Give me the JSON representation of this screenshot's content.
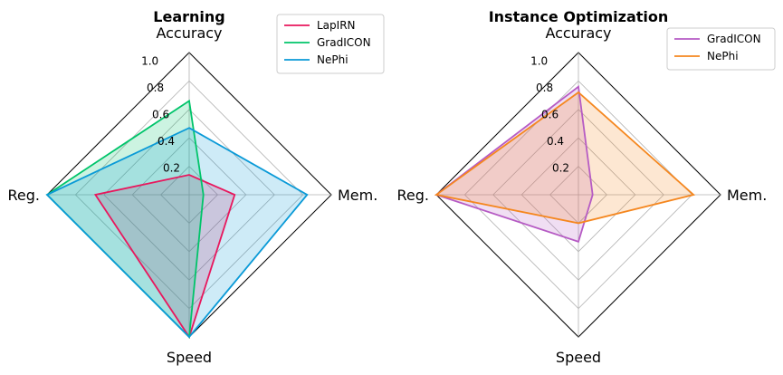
{
  "chart_data": [
    {
      "type": "radar",
      "title": "Learning",
      "axes": [
        "Accuracy",
        "Mem.",
        "Speed",
        "Reg."
      ],
      "rlim": [
        0,
        1.0
      ],
      "rticks": [
        "0.2",
        "0.4",
        "0.6",
        "0.8",
        "1.0"
      ],
      "grid": true,
      "legend_position": "top-right",
      "series": [
        {
          "name": "LapIRN",
          "color": "#e8175d",
          "values": [
            0.14,
            0.32,
            1.0,
            0.66
          ]
        },
        {
          "name": "GradICON",
          "color": "#00c46a",
          "values": [
            0.66,
            0.1,
            1.0,
            1.0
          ]
        },
        {
          "name": "NePhi",
          "color": "#0a9ad7",
          "values": [
            0.47,
            0.83,
            1.0,
            1.0
          ]
        }
      ]
    },
    {
      "type": "radar",
      "title": "Instance Optimization",
      "axes": [
        "Accuracy",
        "Mem.",
        "Speed",
        "Reg."
      ],
      "rlim": [
        0,
        1.0
      ],
      "rticks": [
        "0.2",
        "0.4",
        "0.6",
        "0.8",
        "1.0"
      ],
      "grid": true,
      "legend_position": "top-right",
      "series": [
        {
          "name": "GradICON",
          "color": "#b65bc4",
          "values": [
            0.76,
            0.1,
            0.33,
            1.0
          ]
        },
        {
          "name": "NePhi",
          "color": "#f5871f",
          "values": [
            0.72,
            0.81,
            0.2,
            1.0
          ]
        }
      ]
    }
  ]
}
